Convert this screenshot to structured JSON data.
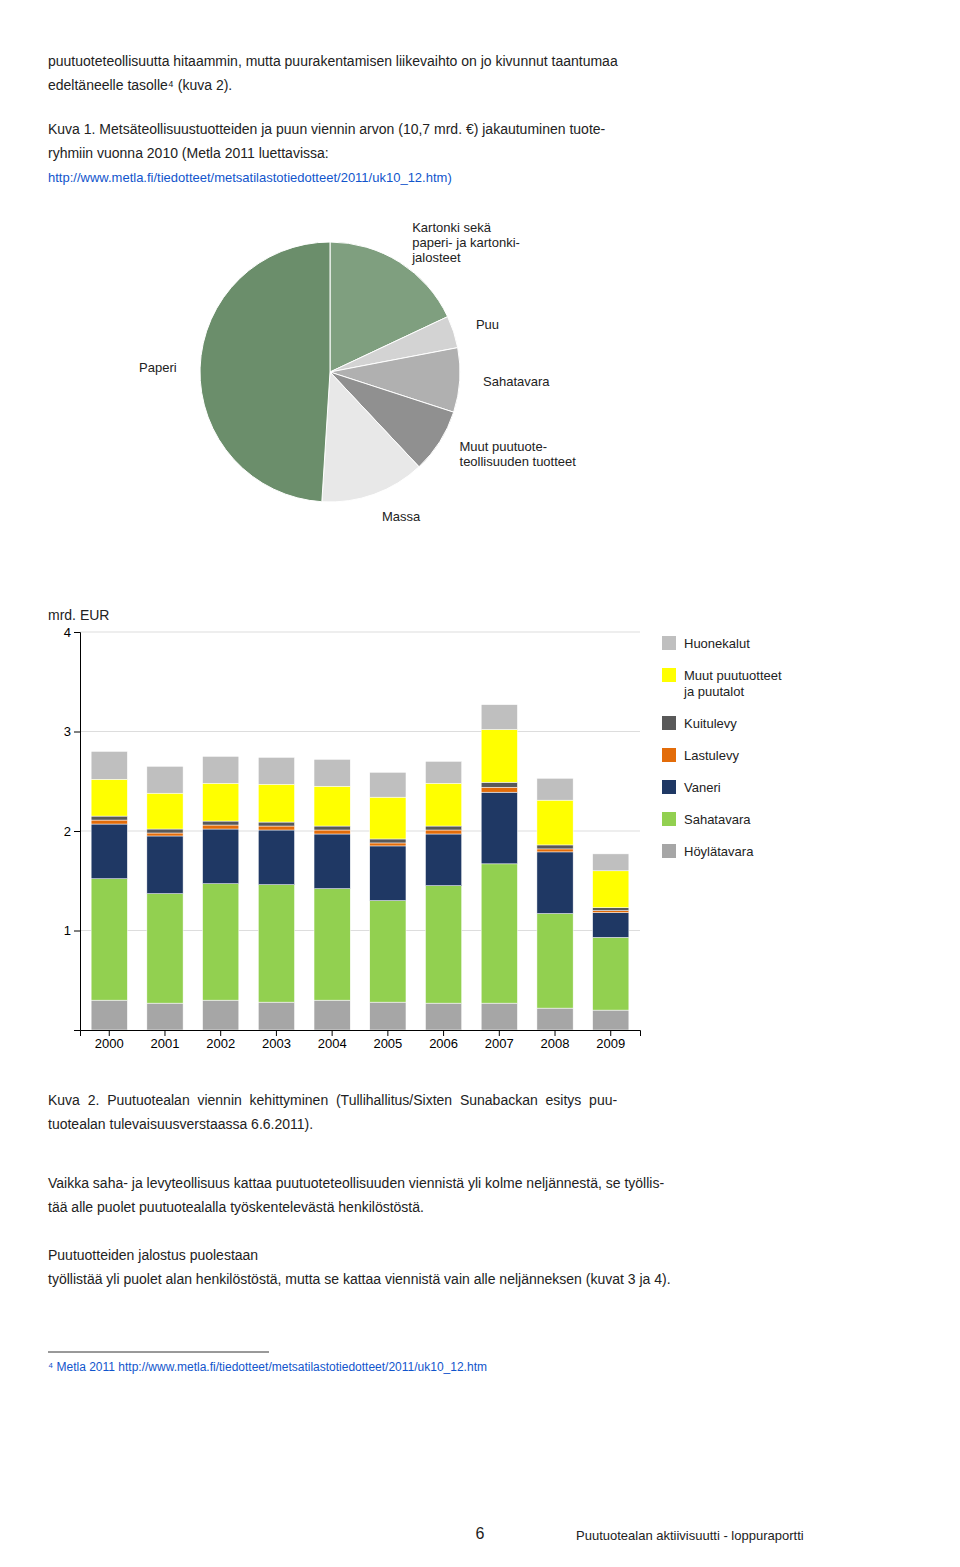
{
  "chart_data": [
    {
      "type": "pie",
      "categories": [
        "Kartonki sekä\npaperi- ja kartonki-\njalosteet",
        "Puu",
        "Sahatavara",
        "Muut puutuote-\nteollisuuden tuotteet",
        "Massa",
        "Paperi"
      ],
      "values": [
        18,
        4,
        8,
        8,
        13,
        49
      ],
      "colors": [
        "#7f9f7f",
        "#d3d3d3",
        "#b0b0b0",
        "#909090",
        "#e8e8e8",
        "#6b8e6b"
      ]
    },
    {
      "type": "bar",
      "stacked": true,
      "ylabel": "mrd. EUR",
      "categories": [
        "2000",
        "2001",
        "2002",
        "2003",
        "2004",
        "2005",
        "2006",
        "2007",
        "2008",
        "2009"
      ],
      "series": [
        {
          "name": "Höylätavara",
          "color": "#a6a6a6",
          "values": [
            0.3,
            0.27,
            0.3,
            0.28,
            0.3,
            0.28,
            0.27,
            0.27,
            0.22,
            0.2
          ]
        },
        {
          "name": "Sahatavara",
          "color": "#92d050",
          "values": [
            1.22,
            1.1,
            1.17,
            1.18,
            1.12,
            1.02,
            1.18,
            1.4,
            0.95,
            0.73
          ]
        },
        {
          "name": "Vaneri",
          "color": "#1f3864",
          "values": [
            0.55,
            0.58,
            0.55,
            0.55,
            0.55,
            0.55,
            0.52,
            0.72,
            0.62,
            0.25
          ]
        },
        {
          "name": "Lastulevy",
          "color": "#e36c09",
          "values": [
            0.04,
            0.03,
            0.04,
            0.04,
            0.04,
            0.03,
            0.04,
            0.05,
            0.03,
            0.02
          ]
        },
        {
          "name": "Kuitulevy",
          "color": "#595959",
          "values": [
            0.04,
            0.04,
            0.04,
            0.04,
            0.04,
            0.04,
            0.04,
            0.05,
            0.04,
            0.03
          ]
        },
        {
          "name": "Muut puutuotteet\nja puutalot",
          "color": "#ffff00",
          "values": [
            0.37,
            0.36,
            0.38,
            0.38,
            0.4,
            0.42,
            0.43,
            0.53,
            0.45,
            0.37
          ]
        },
        {
          "name": "Huonekalut",
          "color": "#bfbfbf",
          "values": [
            0.28,
            0.27,
            0.27,
            0.27,
            0.27,
            0.25,
            0.22,
            0.25,
            0.22,
            0.17
          ]
        }
      ],
      "ylim": [
        0,
        4
      ],
      "yticks": [
        1,
        2,
        3,
        4
      ],
      "grid": true,
      "legend": "right"
    }
  ],
  "annotations": [
    {
      "text": "puutuoteteollisuutta hitaammin, mutta puurakentamisen liikevaihto on jo kivunnut taantumaa"
    },
    {
      "text": "edeltäneelle tasolle⁴ (kuva 2)."
    },
    {
      "text": "Kuva 1. Metsäteollisuustuotteiden ja puun viennin arvon (10,7 mrd. €) jakautuminen tuote-"
    },
    {
      "text": "ryhmiin vuonna 2010 (Metla 2011 luettavissa:"
    },
    {
      "text": "http://www.metla.fi/tiedotteet/metsatilastotiedotteet/2011/uk10_12.htm)",
      "color": "#1155cc"
    },
    {
      "text": "Kuva  2.  Puutuotealan  viennin  kehittyminen  (Tullihallitus/Sixten  Sunabackan  esitys  puu-"
    },
    {
      "text": "tuotealan tulevaisuusverstaassa 6.6.2011)."
    },
    {
      "text": "Vaikka saha- ja levyteollisuus kattaa puutuoteteollisuuden viennistä yli kolme neljännestä, se työllis-"
    },
    {
      "text": "tää alle puolet puutuotealalla työskentelevästä henkilöstöstä."
    },
    {
      "text": "Puutuotteiden jalostus puolestaan"
    },
    {
      "text": "työllistää yli puolet alan henkilöstöstä, mutta se kattaa viennistä vain alle neljänneksen (kuvat 3 ja 4)."
    },
    {
      "text": "⁴ Metla 2011 http://www.metla.fi/tiedotteet/metsatilastotiedotteet/2011/uk10_12.htm",
      "color": "#1155cc"
    },
    {
      "text": "6"
    },
    {
      "text": "Puutuotealan aktiivisuutti - loppuraportti"
    }
  ]
}
